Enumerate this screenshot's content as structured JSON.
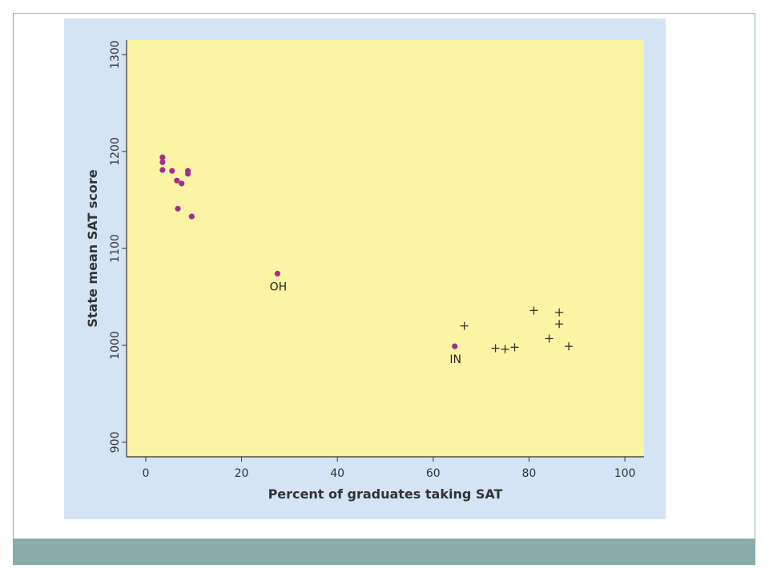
{
  "colors": {
    "panel_bg": "#d4e4f4",
    "plot_bg": "#fbf4a4",
    "dot": "#a0308c",
    "plus": "#333333",
    "footer_band": "#8aabab"
  },
  "chart_data": {
    "type": "scatter",
    "title": "",
    "xlabel": "Percent of graduates taking SAT",
    "ylabel": "State mean SAT score",
    "xlim": [
      -4,
      104
    ],
    "ylim": [
      885,
      1315
    ],
    "xticks": [
      0,
      20,
      40,
      60,
      80,
      100
    ],
    "yticks": [
      900,
      1000,
      1100,
      1200,
      1300
    ],
    "grid": false,
    "series": [
      {
        "marker": "dot",
        "points": [
          {
            "x": 3.5,
            "y": 1194
          },
          {
            "x": 3.5,
            "y": 1189
          },
          {
            "x": 3.5,
            "y": 1181
          },
          {
            "x": 5.5,
            "y": 1180
          },
          {
            "x": 6.5,
            "y": 1170
          },
          {
            "x": 7.5,
            "y": 1167
          },
          {
            "x": 8.8,
            "y": 1180
          },
          {
            "x": 8.8,
            "y": 1177
          },
          {
            "x": 6.7,
            "y": 1141
          },
          {
            "x": 9.6,
            "y": 1133
          },
          {
            "x": 27.5,
            "y": 1074
          },
          {
            "x": 64.5,
            "y": 999
          }
        ]
      },
      {
        "marker": "plus",
        "points": [
          {
            "x": 66.5,
            "y": 1020
          },
          {
            "x": 81,
            "y": 1036
          },
          {
            "x": 86.3,
            "y": 1034
          },
          {
            "x": 86.3,
            "y": 1022
          },
          {
            "x": 84.2,
            "y": 1007
          },
          {
            "x": 88.3,
            "y": 999
          },
          {
            "x": 73,
            "y": 997
          },
          {
            "x": 75,
            "y": 996
          },
          {
            "x": 77,
            "y": 998
          }
        ]
      }
    ],
    "annotations": [
      {
        "text": "OH",
        "x": 27.5,
        "y": 1074
      },
      {
        "text": "IN",
        "x": 64.5,
        "y": 999
      }
    ]
  }
}
